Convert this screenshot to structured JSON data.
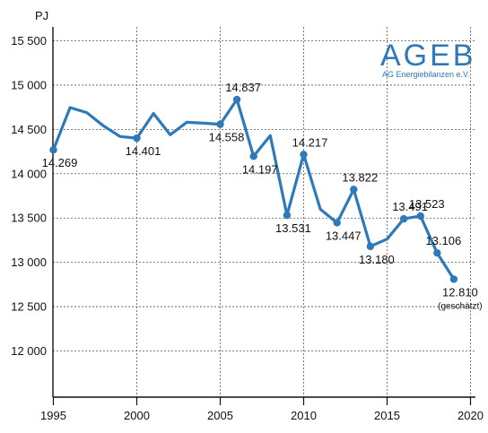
{
  "chart_data": {
    "type": "line",
    "ylabel": "PJ",
    "xlim": [
      1995,
      2020
    ],
    "ylim": [
      11500,
      15700
    ],
    "yticks": [
      {
        "value": 12000,
        "label": "12 000"
      },
      {
        "value": 12500,
        "label": "12 500"
      },
      {
        "value": 13000,
        "label": "13 000"
      },
      {
        "value": 13500,
        "label": "13 500"
      },
      {
        "value": 14000,
        "label": "14 000"
      },
      {
        "value": 14500,
        "label": "14 500"
      },
      {
        "value": 15000,
        "label": "15 000"
      },
      {
        "value": 15500,
        "label": "15 500"
      }
    ],
    "xticks": [
      {
        "value": 1995,
        "label": "1995"
      },
      {
        "value": 2000,
        "label": "2000"
      },
      {
        "value": 2005,
        "label": "2005"
      },
      {
        "value": 2010,
        "label": "2010"
      },
      {
        "value": 2015,
        "label": "2015"
      },
      {
        "value": 2020,
        "label": "2020"
      }
    ],
    "grid": "dashed",
    "color": "#2e79b9",
    "series": [
      {
        "points": [
          {
            "x": 1995,
            "y": 14269,
            "label": "14.269",
            "pos": "below"
          },
          {
            "x": 1996,
            "y": 14746
          },
          {
            "x": 1997,
            "y": 14690
          },
          {
            "x": 1998,
            "y": 14540
          },
          {
            "x": 1999,
            "y": 14420
          },
          {
            "x": 2000,
            "y": 14401,
            "label": "14.401",
            "pos": "below"
          },
          {
            "x": 2001,
            "y": 14680
          },
          {
            "x": 2002,
            "y": 14440
          },
          {
            "x": 2003,
            "y": 14580
          },
          {
            "x": 2004,
            "y": 14570
          },
          {
            "x": 2005,
            "y": 14558,
            "label": "14.558",
            "pos": "below"
          },
          {
            "x": 2006,
            "y": 14837,
            "label": "14.837",
            "pos": "above"
          },
          {
            "x": 2007,
            "y": 14197,
            "label": "14.197",
            "pos": "below"
          },
          {
            "x": 2008,
            "y": 14430
          },
          {
            "x": 2009,
            "y": 13531,
            "label": "13.531",
            "pos": "below"
          },
          {
            "x": 2010,
            "y": 14217,
            "label": "14.217",
            "pos": "above"
          },
          {
            "x": 2011,
            "y": 13599
          },
          {
            "x": 2012,
            "y": 13447,
            "label": "13.447",
            "pos": "below"
          },
          {
            "x": 2013,
            "y": 13822,
            "label": "13.822",
            "pos": "above"
          },
          {
            "x": 2014,
            "y": 13180,
            "label": "13.180",
            "pos": "below"
          },
          {
            "x": 2015,
            "y": 13262
          },
          {
            "x": 2016,
            "y": 13491,
            "label": "13.491",
            "pos": "above"
          },
          {
            "x": 2017,
            "y": 13523,
            "label": "13.523",
            "pos": "above"
          },
          {
            "x": 2018,
            "y": 13106,
            "label": "13.106",
            "pos": "above"
          },
          {
            "x": 2019,
            "y": 12810,
            "label": "12.810",
            "note": "(geschätzt)",
            "pos": "below"
          }
        ]
      }
    ]
  },
  "logo": {
    "name": "AGEB",
    "subtitle": "AG Energiebilanzen e.V."
  }
}
